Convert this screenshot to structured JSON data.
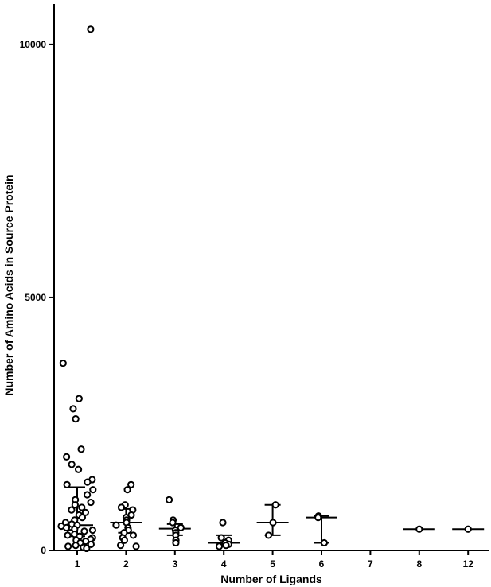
{
  "chart_data": {
    "type": "scatter",
    "title": "",
    "xlabel": "Number of Ligands",
    "ylabel": "Number of Amino Acids in Source Protein",
    "ylim": [
      0,
      10800
    ],
    "yticks": [
      0,
      5000,
      10000
    ],
    "categories": [
      "1",
      "2",
      "3",
      "4",
      "5",
      "6",
      "7",
      "8",
      "12"
    ],
    "legend": "none",
    "grid": false,
    "groups": [
      {
        "category": "1",
        "points": [
          10300,
          3700,
          3000,
          2800,
          2600,
          2000,
          1850,
          1700,
          1600,
          1400,
          1350,
          1300,
          1200,
          1100,
          1000,
          950,
          900,
          850,
          800,
          750,
          700,
          650,
          600,
          550,
          520,
          500,
          480,
          450,
          420,
          400,
          380,
          350,
          320,
          300,
          280,
          250,
          220,
          200,
          180,
          150,
          120,
          100,
          80,
          60,
          40
        ],
        "median": 500,
        "q1": 280,
        "q3": 1250
      },
      {
        "category": "2",
        "points": [
          1300,
          1200,
          900,
          850,
          800,
          700,
          650,
          600,
          550,
          500,
          450,
          400,
          350,
          300,
          250,
          200,
          100,
          80
        ],
        "median": 550,
        "q1": 350,
        "q3": 820
      },
      {
        "category": "3",
        "points": [
          1000,
          600,
          550,
          450,
          400,
          350,
          300,
          200,
          150
        ],
        "median": 430,
        "q1": 300,
        "q3": 520
      },
      {
        "category": "4",
        "points": [
          550,
          250,
          200,
          150,
          120,
          100,
          80
        ],
        "median": 150,
        "q1": 100,
        "q3": 300
      },
      {
        "category": "5",
        "points": [
          900,
          550,
          300
        ],
        "median": 550,
        "q1": 300,
        "q3": 900
      },
      {
        "category": "6",
        "points": [
          680,
          650,
          150
        ],
        "median": 650,
        "q1": 150,
        "q3": 680
      },
      {
        "category": "7",
        "points": [],
        "median": null,
        "q1": null,
        "q3": null
      },
      {
        "category": "8",
        "points": [
          420
        ],
        "median": 420,
        "q1": 420,
        "q3": 420
      },
      {
        "category": "12",
        "points": [
          420
        ],
        "median": 420,
        "q1": 420,
        "q3": 420
      }
    ]
  }
}
